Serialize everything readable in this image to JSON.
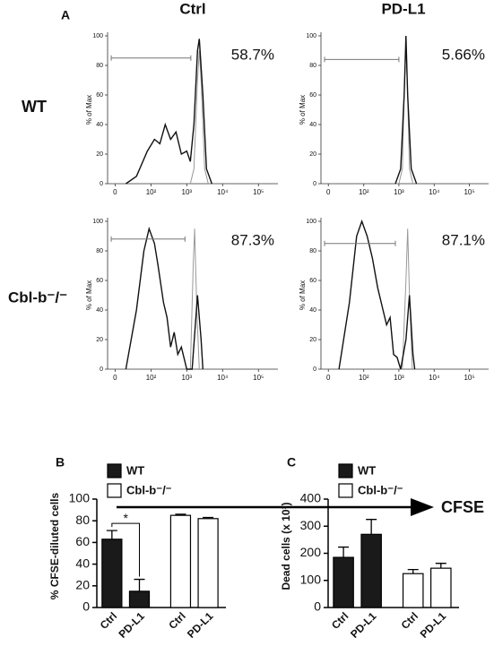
{
  "panel_a": {
    "label": "A",
    "column_titles": [
      "Ctrl",
      "PD-L1"
    ],
    "row_labels": [
      "WT",
      "Cbl-b⁻/⁻"
    ],
    "x_axis_label": "CFSE"
  },
  "chart_data": [
    {
      "type": "line",
      "xscale": "arcsinh",
      "xlim": [
        -10,
        350000
      ],
      "ylim": [
        0,
        100
      ],
      "xticks": [
        0,
        {
          "value": 100,
          "label": "10²"
        },
        {
          "value": 1000,
          "label": "10³"
        },
        {
          "value": 10000,
          "label": "10⁴"
        },
        {
          "value": 100000,
          "label": "10⁵"
        }
      ],
      "yticks": [
        0,
        20,
        40,
        60,
        80,
        100
      ],
      "ylabel": "% of Max",
      "series": [
        {
          "color": "#999999",
          "x": [
            1259,
            1585,
            1995,
            2239,
            2512,
            3162,
            3981
          ],
          "values": [
            0,
            10,
            70,
            90,
            70,
            10,
            0
          ]
        },
        {
          "color": "#111111",
          "x": [
            15,
            37,
            78,
            125,
            177,
            251,
            355,
            501,
            708,
            1000,
            1259,
            1585,
            1995,
            2239,
            2818,
            3548,
            5012
          ],
          "values": [
            0,
            5,
            22,
            30,
            27,
            40,
            30,
            35,
            20,
            22,
            15,
            40,
            90,
            98,
            60,
            10,
            0
          ]
        }
      ],
      "gate": {
        "x": [
          -5,
          1300
        ],
        "y": 85,
        "label": "58.7%"
      }
    },
    {
      "type": "line",
      "xscale": "arcsinh",
      "xlim": [
        -10,
        350000
      ],
      "ylim": [
        0,
        100
      ],
      "xticks": [
        0,
        {
          "value": 100,
          "label": "10²"
        },
        {
          "value": 1000,
          "label": "10³"
        },
        {
          "value": 10000,
          "label": "10⁴"
        },
        {
          "value": 100000,
          "label": "10⁵"
        }
      ],
      "yticks": [
        0,
        20,
        40,
        60,
        80,
        100
      ],
      "ylabel": "% of Max",
      "series": [
        {
          "color": "#999999",
          "x": [
            1000,
            1259,
            1413,
            1585,
            1778,
            1995,
            2512
          ],
          "values": [
            0,
            10,
            60,
            95,
            60,
            10,
            0
          ]
        },
        {
          "color": "#111111",
          "x": [
            794,
            1122,
            1413,
            1585,
            1778,
            2239,
            3162
          ],
          "values": [
            0,
            10,
            60,
            100,
            60,
            10,
            0
          ]
        }
      ],
      "gate": {
        "x": [
          -5,
          1000
        ],
        "y": 84,
        "label": "5.66%"
      }
    },
    {
      "type": "line",
      "xscale": "arcsinh",
      "xlim": [
        -10,
        350000
      ],
      "ylim": [
        0,
        100
      ],
      "xticks": [
        0,
        {
          "value": 100,
          "label": "10²"
        },
        {
          "value": 1000,
          "label": "10³"
        },
        {
          "value": 10000,
          "label": "10⁴"
        },
        {
          "value": 100000,
          "label": "10⁵"
        }
      ],
      "yticks": [
        0,
        20,
        40,
        60,
        80,
        100
      ],
      "ylabel": "% of Max",
      "series": [
        {
          "color": "#999999",
          "x": [
            1259,
            1514,
            1660,
            1905,
            2239
          ],
          "values": [
            0,
            70,
            95,
            40,
            0
          ]
        },
        {
          "color": "#111111",
          "x": [
            15,
            37,
            62,
            88,
            125,
            158,
            224,
            282,
            355,
            447,
            562,
            708,
            891,
            1000,
            1413,
            1995,
            2512,
            2818
          ],
          "values": [
            0,
            40,
            80,
            95,
            85,
            70,
            45,
            35,
            15,
            25,
            10,
            15,
            5,
            0,
            0,
            50,
            20,
            0
          ]
        }
      ],
      "gate": {
        "x": [
          -5,
          891
        ],
        "y": 88,
        "label": "87.3%"
      }
    },
    {
      "type": "line",
      "xscale": "arcsinh",
      "xlim": [
        -10,
        350000
      ],
      "ylim": [
        0,
        100
      ],
      "xticks": [
        0,
        {
          "value": 100,
          "label": "10²"
        },
        {
          "value": 1000,
          "label": "10³"
        },
        {
          "value": 10000,
          "label": "10⁴"
        },
        {
          "value": 100000,
          "label": "10⁵"
        }
      ],
      "yticks": [
        0,
        20,
        40,
        60,
        80,
        100
      ],
      "ylabel": "% of Max",
      "series": [
        {
          "color": "#999999",
          "x": [
            1259,
            1585,
            1778,
            1995,
            2399
          ],
          "values": [
            0,
            60,
            95,
            50,
            0
          ]
        },
        {
          "color": "#111111",
          "x": [
            15,
            37,
            62,
            88,
            125,
            177,
            251,
            355,
            447,
            562,
            708,
            891,
            1122,
            1585,
            1995,
            2512,
            2818
          ],
          "values": [
            0,
            45,
            90,
            100,
            90,
            75,
            55,
            40,
            30,
            35,
            10,
            8,
            0,
            20,
            50,
            10,
            0
          ]
        }
      ],
      "gate": {
        "x": [
          -5,
          794
        ],
        "y": 85,
        "label": "87.1%"
      }
    },
    {
      "type": "bar",
      "panel_label": "B",
      "ylabel": "% CFSE-diluted cells",
      "ylim": [
        0,
        100
      ],
      "yticks": [
        0,
        20,
        40,
        60,
        80,
        100
      ],
      "categories": [
        "Ctrl",
        "PD-L1",
        "Ctrl",
        "PD-L1"
      ],
      "legend": "upper left",
      "annotation": "*",
      "series": [
        {
          "name": "WT",
          "color": "#1a1a1a",
          "values": [
            63,
            15,
            null,
            null
          ],
          "errors": [
            8,
            11,
            null,
            null
          ]
        },
        {
          "name": "Cbl-b⁻/⁻",
          "color": "#ffffff",
          "values": [
            null,
            null,
            85,
            82
          ],
          "errors": [
            null,
            null,
            1,
            1
          ]
        }
      ]
    },
    {
      "type": "bar",
      "panel_label": "C",
      "ylabel": "Dead cells (x 10³)",
      "ylim": [
        0,
        400
      ],
      "yticks": [
        0,
        100,
        200,
        300,
        400
      ],
      "categories": [
        "Ctrl",
        "PD-L1",
        "Ctrl",
        "PD-L1"
      ],
      "legend": "upper left",
      "series": [
        {
          "name": "WT",
          "color": "#1a1a1a",
          "values": [
            185,
            270,
            null,
            null
          ],
          "errors": [
            38,
            55,
            null,
            null
          ]
        },
        {
          "name": "Cbl-b⁻/⁻",
          "color": "#ffffff",
          "values": [
            null,
            null,
            125,
            145
          ],
          "errors": [
            null,
            null,
            15,
            18
          ]
        }
      ]
    }
  ]
}
